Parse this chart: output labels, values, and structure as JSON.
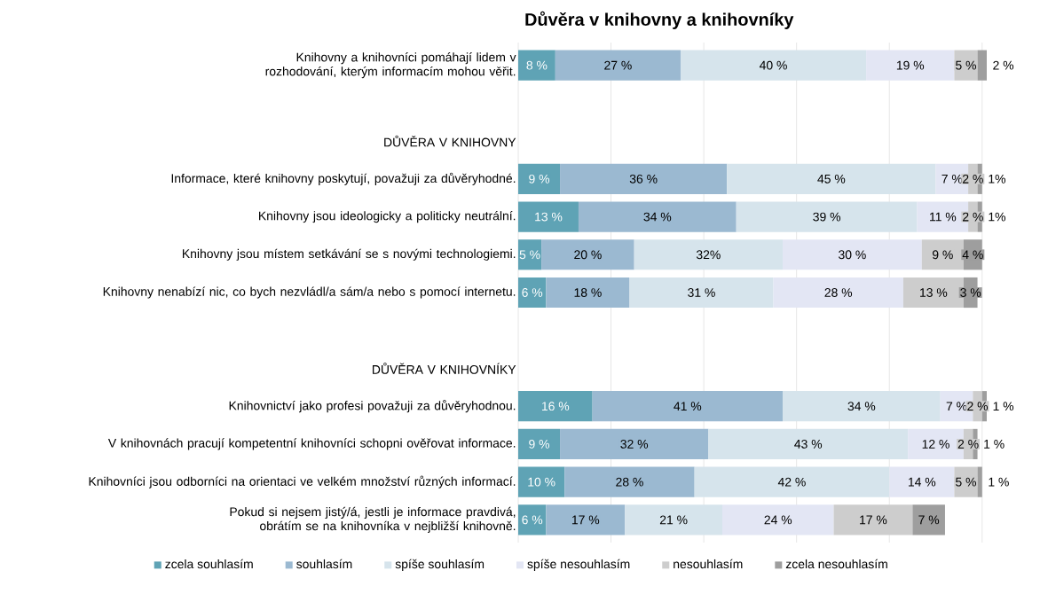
{
  "chart_data": {
    "type": "bar",
    "orientation": "horizontal",
    "stacked": true,
    "title": "Důvěra v knihovny a knihovníky",
    "categories": [
      "Knihovny a knihovníci pomáhají lidem v rozhodování, kterým informacím mohou věřit.",
      null,
      "DŮVĚRA V KNIHOVNY",
      "Informace, které knihovny poskytují, považuji za důvěryhodné.",
      "Knihovny jsou ideologicky a politicky neutrální.",
      "Knihovny jsou místem setkávání se s novými technologiemi.",
      "Knihovny nenabízí nic, co bych nezvládl/a sám/a nebo s pomocí internetu.",
      null,
      "DŮVĚRA V KNIHOVNÍKY",
      "Knihovnictví jako profesi považuji za důvěryhodnou.",
      "V knihovnách pracují kompetentní knihovníci schopni ověřovat informace.",
      "Knihovníci jsou odborníci na orientaci ve velkém množství různých informací.",
      "Pokud si nejsem jistý/á, jestli je informace pravdivá, obrátím se na knihovníka v nejbližší knihovně."
    ],
    "series": [
      {
        "name": "zcela souhlasím",
        "color": "#5fa3b5",
        "values": [
          8,
          null,
          null,
          9,
          13,
          5,
          6,
          null,
          null,
          16,
          9,
          10,
          6
        ],
        "value_labels": [
          "8 %",
          null,
          null,
          "9 %",
          "13 %",
          "5 %",
          "6 %",
          null,
          null,
          "16 %",
          "9 %",
          "10 %",
          "6 %"
        ]
      },
      {
        "name": "souhlasím",
        "color": "#9bb9d1",
        "values": [
          27,
          null,
          null,
          36,
          34,
          20,
          18,
          null,
          null,
          41,
          32,
          28,
          17
        ],
        "value_labels": [
          "27 %",
          null,
          null,
          "36 %",
          "34 %",
          "20 %",
          "18 %",
          null,
          null,
          "41 %",
          "32 %",
          "28 %",
          "17 %"
        ]
      },
      {
        "name": "spíše souhlasím",
        "color": "#d6e4ec",
        "values": [
          40,
          null,
          null,
          45,
          39,
          32,
          31,
          null,
          null,
          34,
          43,
          42,
          21
        ],
        "value_labels": [
          "40 %",
          null,
          null,
          "45 %",
          "39 %",
          "32%",
          "31 %",
          null,
          null,
          "34 %",
          "43 %",
          "42 %",
          "21 %"
        ]
      },
      {
        "name": "spíše nesouhlasím",
        "color": "#e3e6f4",
        "values": [
          19,
          null,
          null,
          7,
          11,
          30,
          28,
          null,
          null,
          7,
          12,
          14,
          24
        ],
        "value_labels": [
          "19 %",
          null,
          null,
          "7 %",
          "11 %",
          "30 %",
          "28 %",
          null,
          null,
          "7 %",
          "12 %",
          "14 %",
          "24 %"
        ]
      },
      {
        "name": "nesouhlasím",
        "color": "#cdcdcd",
        "values": [
          5,
          null,
          null,
          2,
          2,
          9,
          13,
          null,
          null,
          2,
          2,
          5,
          17
        ],
        "value_labels": [
          "5 %",
          null,
          null,
          "2 %",
          "2 %",
          "9 %",
          "13 %",
          null,
          null,
          "2 %",
          "2 %",
          "5 %",
          "17 %"
        ]
      },
      {
        "name": "zcela nesouhlasím",
        "color": "#9e9e9e",
        "values": [
          2,
          null,
          null,
          1,
          1,
          4,
          3,
          null,
          null,
          1,
          1,
          1,
          7
        ],
        "value_labels": [
          "2 %",
          null,
          null,
          "1%",
          "1%",
          "4 %",
          "3 %",
          null,
          null,
          "1 %",
          "1 %",
          "1 %",
          "7 %"
        ]
      }
    ],
    "xlim": [
      0,
      101
    ],
    "xticks": [
      {
        "value": 0,
        "label": null
      },
      {
        "value": 20,
        "label": null
      },
      {
        "value": 40,
        "label": null
      },
      {
        "value": 60,
        "label": null
      },
      {
        "value": 80,
        "label": null
      },
      {
        "value": 100,
        "label": null
      }
    ],
    "grid": "x",
    "tick_labels": "y",
    "legend": "bottom"
  }
}
